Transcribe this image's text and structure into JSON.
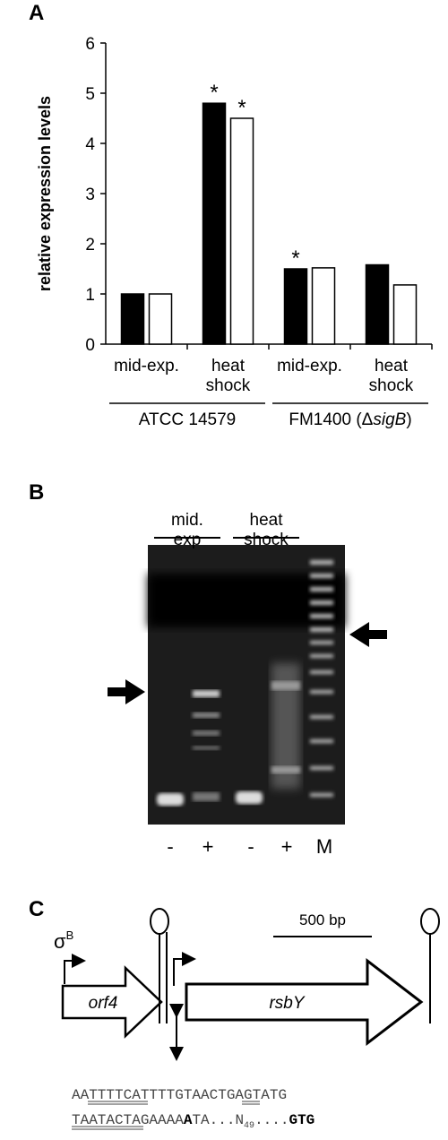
{
  "chart_data": {
    "type": "bar",
    "panel_label": "A",
    "y_label": "relative expression levels",
    "categories": [
      "mid-exp.",
      "heat shock",
      "mid-exp.",
      "heat shock"
    ],
    "series": [
      {
        "color": "#000000",
        "values": [
          1.0,
          4.8,
          1.5,
          1.58
        ]
      },
      {
        "color": "#ffffff",
        "values": [
          1.0,
          4.5,
          1.52,
          1.18
        ]
      }
    ],
    "ylim": [
      0,
      6
    ],
    "yticks": [
      0,
      1,
      2,
      3,
      4,
      5,
      6
    ],
    "annotations": [
      {
        "text": "*",
        "series": 0,
        "index": 1
      },
      {
        "text": "*",
        "series": 1,
        "index": 1
      },
      {
        "text": "*",
        "series": 0,
        "index": 2
      }
    ],
    "groups": [
      {
        "parts": [
          {
            "text": "ATCC 14579"
          }
        ]
      },
      {
        "parts": [
          {
            "text": "FM1400 (Δ"
          },
          {
            "text": "sigB",
            "italic": true
          },
          {
            "text": ")"
          }
        ]
      }
    ]
  },
  "gel": {
    "panel_label": "B",
    "lane_groups": [
      {
        "lines": [
          "mid.",
          "exp"
        ]
      },
      {
        "lines": [
          "heat",
          "shock"
        ]
      }
    ],
    "lanes": [
      "-",
      "+",
      "-",
      "+",
      "M"
    ]
  },
  "diagram": {
    "panel_label": "C",
    "sigma": "σ",
    "sigma_sup": "B",
    "scale": "500 bp",
    "genes": [
      "orf4",
      "rsbY"
    ],
    "sequence": [
      [
        {
          "text": "AATTTTCATTTTGTAACTGAGTATG"
        }
      ],
      [
        {
          "text": "TAATACTAGAAAA"
        },
        {
          "text": "A",
          "bold": true
        },
        {
          "text": "TA...N"
        },
        {
          "text": "49",
          "sub": true
        },
        {
          "text": "...."
        },
        {
          "text": "GTG",
          "bold": true
        }
      ]
    ]
  }
}
